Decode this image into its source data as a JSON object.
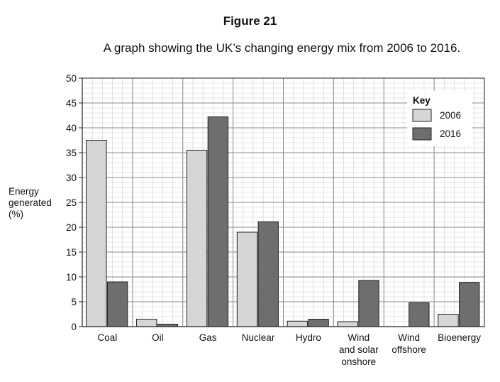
{
  "figure_label": "Figure 21",
  "title": "A graph showing the UK’s changing energy mix from 2006 to 2016.",
  "chart_data": {
    "type": "bar",
    "title": "A graph showing the UK’s changing energy mix from 2006 to 2016.",
    "ylabel_lines": [
      "Energy",
      "generated",
      "(%)"
    ],
    "xlabel": "",
    "ylim": [
      0,
      50
    ],
    "yticks": [
      0,
      5,
      10,
      15,
      20,
      25,
      30,
      35,
      40,
      45,
      50
    ],
    "grid": true,
    "legend_title": "Key",
    "legend_position": "top-right",
    "categories": [
      [
        "Coal"
      ],
      [
        "Oil"
      ],
      [
        "Gas"
      ],
      [
        "Nuclear"
      ],
      [
        "Hydro"
      ],
      [
        "Wind",
        "and solar",
        "onshore"
      ],
      [
        "Wind",
        "offshore"
      ],
      [
        "Bioenergy"
      ]
    ],
    "series": [
      {
        "name": "2006",
        "color": "#d6d6d6",
        "values": [
          37.5,
          1.5,
          35.5,
          19.0,
          1.1,
          1.0,
          0.0,
          2.5
        ]
      },
      {
        "name": "2016",
        "color": "#6e6e6e",
        "values": [
          9.0,
          0.5,
          42.2,
          21.1,
          1.5,
          9.3,
          4.8,
          8.9
        ]
      }
    ]
  }
}
